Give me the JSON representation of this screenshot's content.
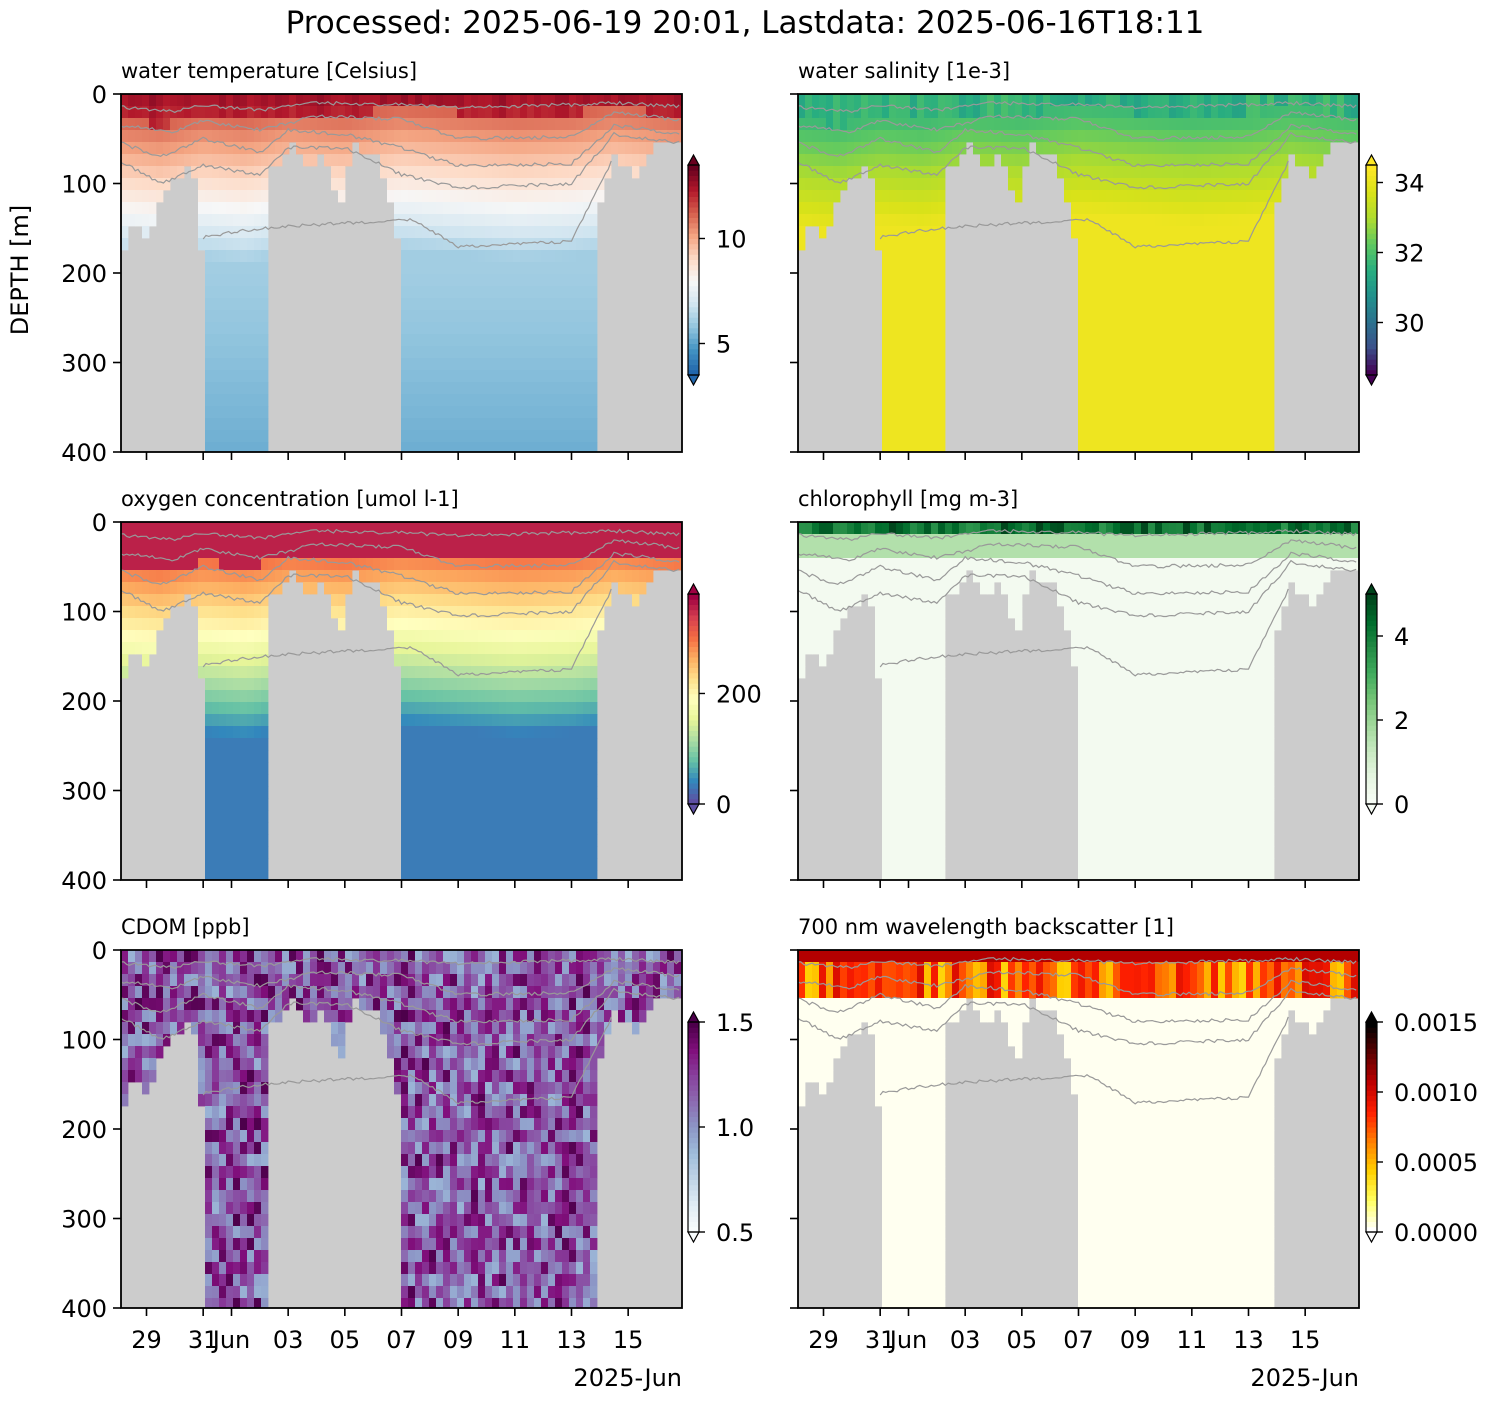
{
  "title": "Processed: 2025-06-19 20:01, Lastdata: 2025-06-16T18:11",
  "ylabel": "DEPTH [m]",
  "y_ticks": [
    0,
    100,
    200,
    300,
    400
  ],
  "x_ticks": [
    "29",
    "31",
    "Jun",
    "03",
    "05",
    "07",
    "09",
    "11",
    "13",
    "15"
  ],
  "x_tick_days": [
    29,
    31,
    32,
    34,
    36,
    38,
    40,
    42,
    44,
    46
  ],
  "x_secondary": "2025-Jun",
  "chart_data": [
    {
      "type": "heatmap",
      "id": "temperature",
      "title": "water temperature [Celsius]",
      "colorbar_ticks": [
        "5",
        "10"
      ],
      "colorbar_tick_values": [
        5,
        10
      ],
      "colorbar_range": [
        3.5,
        13.5
      ],
      "colormap": [
        "#2166ac",
        "#4393c3",
        "#92c5de",
        "#d1e5f0",
        "#f7f7f7",
        "#fddbc7",
        "#f4a582",
        "#d6604d",
        "#b2182b",
        "#67001f"
      ]
    },
    {
      "type": "heatmap",
      "id": "salinity",
      "title": "water salinity [1e-3]",
      "colorbar_ticks": [
        "30",
        "32",
        "34"
      ],
      "colorbar_tick_values": [
        30,
        32,
        34
      ],
      "colorbar_range": [
        28.5,
        34.5
      ],
      "colormap": [
        "#440154",
        "#3b528b",
        "#2c728e",
        "#21918c",
        "#28ae80",
        "#5ec962",
        "#addc30",
        "#d8e219",
        "#fde725"
      ]
    },
    {
      "type": "heatmap",
      "id": "oxygen",
      "title": "oxygen concentration [umol l-1]",
      "colorbar_ticks": [
        "0",
        "200"
      ],
      "colorbar_tick_values": [
        0,
        200
      ],
      "colorbar_range": [
        0,
        380
      ],
      "colormap": [
        "#5e4fa2",
        "#3288bd",
        "#66c2a5",
        "#abdda4",
        "#e6f598",
        "#ffffbf",
        "#fee08b",
        "#fdae61",
        "#f46d43",
        "#d53e4f",
        "#9e0142"
      ]
    },
    {
      "type": "heatmap",
      "id": "chlorophyll",
      "title": "chlorophyll [mg m-3]",
      "colorbar_ticks": [
        "0",
        "2",
        "4"
      ],
      "colorbar_tick_values": [
        0,
        2,
        4
      ],
      "colorbar_range": [
        0,
        5
      ],
      "colormap": [
        "#f7fcf5",
        "#e5f5e0",
        "#c7e9c0",
        "#a1d99b",
        "#74c476",
        "#41ab5d",
        "#238b45",
        "#006d2c",
        "#00441b"
      ]
    },
    {
      "type": "heatmap",
      "id": "cdom",
      "title": "CDOM [ppb]",
      "colorbar_ticks": [
        "0.5",
        "1.0",
        "1.5"
      ],
      "colorbar_tick_values": [
        0.5,
        1.0,
        1.5
      ],
      "colorbar_range": [
        0.5,
        1.5
      ],
      "colormap": [
        "#f7fcfd",
        "#e0ecf4",
        "#bfd3e6",
        "#9ebcda",
        "#8c96c6",
        "#8c6bb1",
        "#88419d",
        "#810f7c",
        "#4d004b"
      ]
    },
    {
      "type": "heatmap",
      "id": "backscatter",
      "title": "700 nm wavelength backscatter [1]",
      "colorbar_ticks": [
        "0.0000",
        "0.0005",
        "0.0010",
        "0.0015"
      ],
      "colorbar_tick_values": [
        0.0,
        0.0005,
        0.001,
        0.0015
      ],
      "colorbar_range": [
        0,
        0.0015
      ],
      "colormap": [
        "#ffffff",
        "#ffff60",
        "#ffd000",
        "#ff8000",
        "#ff2000",
        "#c00000",
        "#600000",
        "#000000"
      ]
    }
  ]
}
